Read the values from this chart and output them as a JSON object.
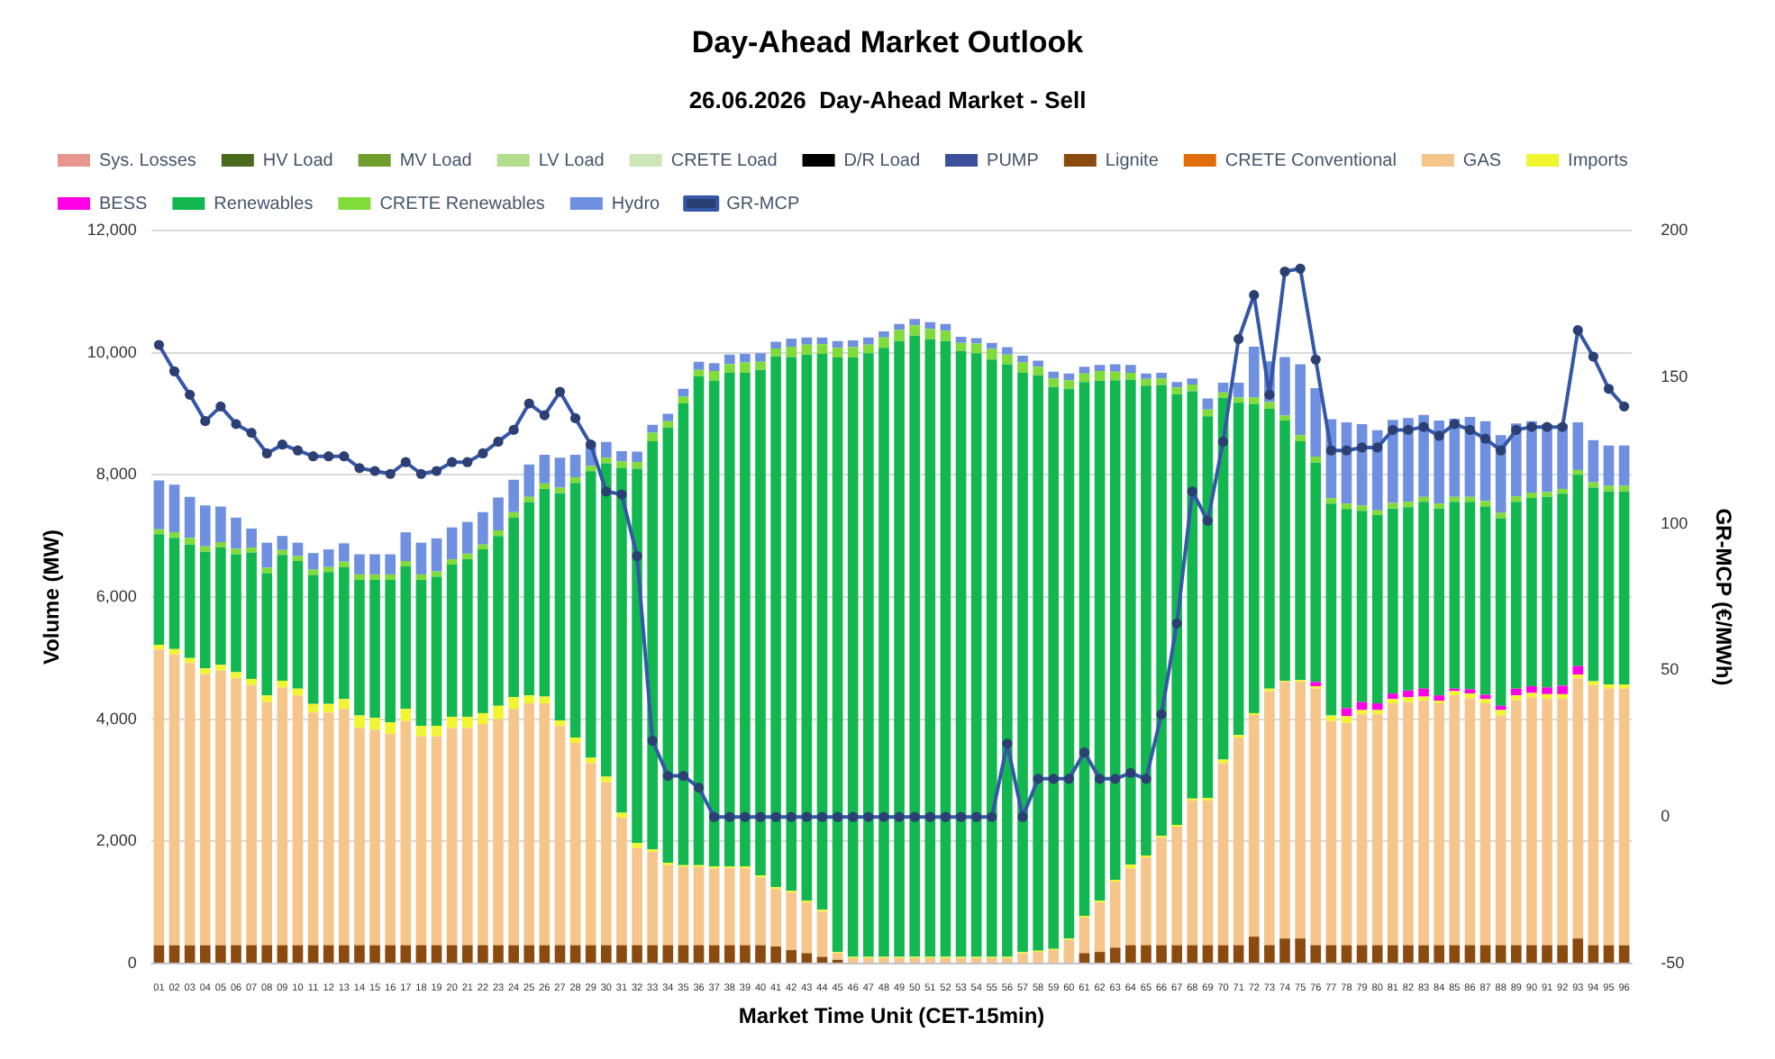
{
  "chart_data": {
    "type": "bar",
    "title": "Day-Ahead Market Outlook",
    "subtitle": "26.06.2026  Day-Ahead Market - Sell",
    "xlabel": "Market Time Unit (CET-15min)",
    "ylabel": "Volume (MW)",
    "y2label": "GR-MCP (€/MWh)",
    "categories": [
      "01",
      "02",
      "03",
      "04",
      "05",
      "06",
      "07",
      "08",
      "09",
      "10",
      "11",
      "12",
      "13",
      "14",
      "15",
      "16",
      "17",
      "18",
      "19",
      "20",
      "21",
      "22",
      "23",
      "24",
      "25",
      "26",
      "27",
      "28",
      "29",
      "30",
      "31",
      "32",
      "33",
      "34",
      "35",
      "36",
      "37",
      "38",
      "39",
      "40",
      "41",
      "42",
      "43",
      "44",
      "45",
      "46",
      "47",
      "48",
      "49",
      "50",
      "51",
      "52",
      "53",
      "54",
      "55",
      "56",
      "57",
      "58",
      "59",
      "60",
      "61",
      "62",
      "63",
      "64",
      "65",
      "66",
      "67",
      "68",
      "69",
      "70",
      "71",
      "72",
      "73",
      "74",
      "75",
      "76",
      "77",
      "78",
      "79",
      "80",
      "81",
      "82",
      "83",
      "84",
      "85",
      "86",
      "87",
      "88",
      "89",
      "90",
      "91",
      "92",
      "93",
      "94",
      "95",
      "96"
    ],
    "stacked": true,
    "ylim": [
      0,
      12000
    ],
    "yticks": [
      {
        "value": 0,
        "label": "0"
      },
      {
        "value": 2000,
        "label": "2,000"
      },
      {
        "value": 4000,
        "label": "4,000"
      },
      {
        "value": 6000,
        "label": "6,000"
      },
      {
        "value": 8000,
        "label": "8,000"
      },
      {
        "value": 10000,
        "label": "10,000"
      },
      {
        "value": 12000,
        "label": "12,000"
      }
    ],
    "y2lim": [
      -50,
      200
    ],
    "y2ticks": [
      -50,
      0,
      50,
      100,
      150,
      200
    ],
    "grid": "y",
    "legend": "top",
    "marker": "circle",
    "line_style": "solid",
    "series": [
      {
        "name": "Sys. Losses",
        "color": "#e6968c",
        "values": [
          0,
          0,
          0,
          0,
          0,
          0,
          0,
          0,
          0,
          0,
          0,
          0,
          0,
          0,
          0,
          0,
          0,
          0,
          0,
          0,
          0,
          0,
          0,
          0,
          0,
          0,
          0,
          0,
          0,
          0,
          0,
          0,
          0,
          0,
          0,
          0,
          0,
          0,
          0,
          0,
          0,
          0,
          0,
          0,
          0,
          0,
          0,
          0,
          0,
          0,
          0,
          0,
          0,
          0,
          0,
          0,
          0,
          0,
          0,
          0,
          0,
          0,
          0,
          0,
          0,
          0,
          0,
          0,
          0,
          0,
          0,
          0,
          0,
          0,
          0,
          0,
          0,
          0,
          0,
          0,
          0,
          0,
          0,
          0,
          0,
          0,
          0,
          0,
          0,
          0,
          0,
          0,
          0,
          0,
          0,
          0
        ]
      },
      {
        "name": "HV Load",
        "color": "#4a6b1e",
        "values": [
          0,
          0,
          0,
          0,
          0,
          0,
          0,
          0,
          0,
          0,
          0,
          0,
          0,
          0,
          0,
          0,
          0,
          0,
          0,
          0,
          0,
          0,
          0,
          0,
          0,
          0,
          0,
          0,
          0,
          0,
          0,
          0,
          0,
          0,
          0,
          0,
          0,
          0,
          0,
          0,
          0,
          0,
          0,
          0,
          0,
          0,
          0,
          0,
          0,
          0,
          0,
          0,
          0,
          0,
          0,
          0,
          0,
          0,
          0,
          0,
          0,
          0,
          0,
          0,
          0,
          0,
          0,
          0,
          0,
          0,
          0,
          0,
          0,
          0,
          0,
          0,
          0,
          0,
          0,
          0,
          0,
          0,
          0,
          0,
          0,
          0,
          0,
          0,
          0,
          0,
          0,
          0,
          0,
          0,
          0,
          0
        ]
      },
      {
        "name": "MV Load",
        "color": "#6f9e2a",
        "values": [
          0,
          0,
          0,
          0,
          0,
          0,
          0,
          0,
          0,
          0,
          0,
          0,
          0,
          0,
          0,
          0,
          0,
          0,
          0,
          0,
          0,
          0,
          0,
          0,
          0,
          0,
          0,
          0,
          0,
          0,
          0,
          0,
          0,
          0,
          0,
          0,
          0,
          0,
          0,
          0,
          0,
          0,
          0,
          0,
          0,
          0,
          0,
          0,
          0,
          0,
          0,
          0,
          0,
          0,
          0,
          0,
          0,
          0,
          0,
          0,
          0,
          0,
          0,
          0,
          0,
          0,
          0,
          0,
          0,
          0,
          0,
          0,
          0,
          0,
          0,
          0,
          0,
          0,
          0,
          0,
          0,
          0,
          0,
          0,
          0,
          0,
          0,
          0,
          0,
          0,
          0,
          0,
          0,
          0,
          0,
          0
        ]
      },
      {
        "name": "LV Load",
        "color": "#b3dc8c",
        "values": [
          0,
          0,
          0,
          0,
          0,
          0,
          0,
          0,
          0,
          0,
          0,
          0,
          0,
          0,
          0,
          0,
          0,
          0,
          0,
          0,
          0,
          0,
          0,
          0,
          0,
          0,
          0,
          0,
          0,
          0,
          0,
          0,
          0,
          0,
          0,
          0,
          0,
          0,
          0,
          0,
          0,
          0,
          0,
          0,
          0,
          0,
          0,
          0,
          0,
          0,
          0,
          0,
          0,
          0,
          0,
          0,
          0,
          0,
          0,
          0,
          0,
          0,
          0,
          0,
          0,
          0,
          0,
          0,
          0,
          0,
          0,
          0,
          0,
          0,
          0,
          0,
          0,
          0,
          0,
          0,
          0,
          0,
          0,
          0,
          0,
          0,
          0,
          0,
          0,
          0,
          0,
          0,
          0,
          0,
          0,
          0
        ]
      },
      {
        "name": "CRETE Load",
        "color": "#cde6b8",
        "values": [
          0,
          0,
          0,
          0,
          0,
          0,
          0,
          0,
          0,
          0,
          0,
          0,
          0,
          0,
          0,
          0,
          0,
          0,
          0,
          0,
          0,
          0,
          0,
          0,
          0,
          0,
          0,
          0,
          0,
          0,
          0,
          0,
          0,
          0,
          0,
          0,
          0,
          0,
          0,
          0,
          0,
          0,
          0,
          0,
          0,
          0,
          0,
          0,
          0,
          0,
          0,
          0,
          0,
          0,
          0,
          0,
          0,
          0,
          0,
          0,
          0,
          0,
          0,
          0,
          0,
          0,
          0,
          0,
          0,
          0,
          0,
          0,
          0,
          0,
          0,
          0,
          0,
          0,
          0,
          0,
          0,
          0,
          0,
          0,
          0,
          0,
          0,
          0,
          0,
          0,
          0,
          0,
          0,
          0,
          0,
          0
        ]
      },
      {
        "name": "D/R Load",
        "color": "#000000",
        "values": [
          0,
          0,
          0,
          0,
          0,
          0,
          0,
          0,
          0,
          0,
          0,
          0,
          0,
          0,
          0,
          0,
          0,
          0,
          0,
          0,
          0,
          0,
          0,
          0,
          0,
          0,
          0,
          0,
          0,
          0,
          0,
          0,
          0,
          0,
          0,
          0,
          0,
          0,
          0,
          0,
          0,
          0,
          0,
          0,
          0,
          0,
          0,
          0,
          0,
          0,
          0,
          0,
          0,
          0,
          0,
          0,
          0,
          0,
          0,
          0,
          0,
          0,
          0,
          0,
          0,
          0,
          0,
          0,
          0,
          0,
          0,
          0,
          0,
          0,
          0,
          0,
          0,
          0,
          0,
          0,
          0,
          0,
          0,
          0,
          0,
          0,
          0,
          0,
          0,
          0,
          0,
          0,
          0,
          0,
          0,
          0
        ]
      },
      {
        "name": "PUMP",
        "color": "#3c4f9a",
        "values": [
          0,
          0,
          0,
          0,
          0,
          0,
          0,
          0,
          0,
          0,
          0,
          0,
          0,
          0,
          0,
          0,
          0,
          0,
          0,
          0,
          0,
          0,
          0,
          0,
          0,
          0,
          0,
          0,
          0,
          0,
          0,
          0,
          0,
          0,
          0,
          0,
          0,
          0,
          0,
          0,
          0,
          0,
          0,
          0,
          0,
          0,
          0,
          0,
          0,
          0,
          0,
          0,
          0,
          0,
          0,
          0,
          0,
          0,
          0,
          0,
          0,
          0,
          0,
          0,
          0,
          0,
          0,
          0,
          0,
          0,
          0,
          0,
          0,
          0,
          0,
          0,
          0,
          0,
          0,
          0,
          0,
          0,
          0,
          0,
          0,
          0,
          0,
          0,
          0,
          0,
          0,
          0,
          0,
          0,
          0,
          0
        ]
      },
      {
        "name": "Lignite",
        "color": "#8b4a0e",
        "values": [
          300,
          300,
          300,
          300,
          300,
          300,
          300,
          300,
          300,
          300,
          300,
          300,
          300,
          300,
          300,
          300,
          300,
          300,
          300,
          300,
          300,
          300,
          300,
          300,
          300,
          300,
          300,
          300,
          300,
          300,
          300,
          300,
          300,
          300,
          300,
          300,
          300,
          300,
          300,
          300,
          280,
          220,
          170,
          110,
          60,
          null,
          0,
          0,
          0,
          0,
          0,
          0,
          0,
          0,
          0,
          0,
          0,
          0,
          0,
          0,
          170,
          190,
          260,
          300,
          300,
          300,
          300,
          300,
          300,
          300,
          300,
          440,
          300,
          410,
          410,
          300,
          300,
          300,
          300,
          300,
          300,
          300,
          300,
          300,
          300,
          300,
          300,
          300,
          300,
          300,
          300,
          300,
          410,
          300,
          300,
          300
        ]
      },
      {
        "name": "CRETE Conventional",
        "color": "#e36c0a",
        "values": [
          0,
          0,
          0,
          0,
          0,
          0,
          0,
          0,
          0,
          0,
          0,
          0,
          0,
          0,
          0,
          0,
          0,
          0,
          0,
          0,
          0,
          0,
          0,
          0,
          0,
          0,
          0,
          0,
          0,
          0,
          0,
          0,
          0,
          0,
          0,
          0,
          0,
          0,
          0,
          0,
          0,
          0,
          0,
          0,
          0,
          0,
          0,
          0,
          0,
          0,
          0,
          0,
          0,
          0,
          0,
          0,
          0,
          0,
          0,
          0,
          0,
          0,
          0,
          0,
          0,
          0,
          0,
          0,
          0,
          0,
          0,
          0,
          0,
          0,
          0,
          0,
          0,
          0,
          0,
          0,
          0,
          0,
          0,
          0,
          0,
          0,
          0,
          0,
          0,
          0,
          0,
          0,
          0,
          0,
          0,
          0
        ]
      },
      {
        "name": "GAS",
        "color": "#f5c58a",
        "values": [
          4840,
          4760,
          4620,
          4440,
          4500,
          4370,
          4260,
          3980,
          4220,
          4090,
          3810,
          3810,
          3870,
          3560,
          3530,
          3460,
          3670,
          3420,
          3420,
          3560,
          3560,
          3620,
          3700,
          3870,
          3960,
          3960,
          3590,
          3310,
          2980,
          2670,
          2090,
          1590,
          1530,
          1310,
          1280,
          1280,
          1260,
          1260,
          1260,
          1110,
          940,
          940,
          830,
          740,
          110,
          90,
          90,
          90,
          90,
          90,
          90,
          90,
          90,
          90,
          90,
          90,
          170,
          190,
          220,
          390,
          580,
          810,
          1080,
          1260,
          1440,
          1760,
          1940,
          2370,
          2370,
          2980,
          3400,
          3630,
          4160,
          4200,
          4200,
          4200,
          3670,
          3640,
          3780,
          3780,
          3960,
          3980,
          4000,
          3960,
          4090,
          4040,
          3960,
          3760,
          4010,
          4060,
          4030,
          4030,
          4260,
          4260,
          4200,
          4200
        ]
      },
      {
        "name": "Imports",
        "color": "#f0f530",
        "values": [
          80,
          90,
          80,
          90,
          90,
          100,
          100,
          110,
          110,
          110,
          140,
          140,
          160,
          200,
          190,
          190,
          200,
          170,
          170,
          180,
          180,
          180,
          220,
          190,
          130,
          110,
          90,
          90,
          90,
          90,
          80,
          80,
          40,
          40,
          30,
          30,
          30,
          30,
          30,
          30,
          30,
          30,
          30,
          30,
          20,
          20,
          20,
          20,
          20,
          20,
          20,
          20,
          20,
          20,
          20,
          20,
          20,
          20,
          20,
          20,
          30,
          30,
          30,
          60,
          30,
          30,
          30,
          30,
          40,
          60,
          40,
          30,
          40,
          20,
          30,
          40,
          90,
          110,
          70,
          70,
          70,
          80,
          70,
          40,
          70,
          80,
          70,
          90,
          80,
          70,
          80,
          80,
          60,
          60,
          70,
          70
        ]
      },
      {
        "name": "BESS",
        "color": "#ff00e6",
        "values": [
          0,
          0,
          0,
          0,
          0,
          0,
          0,
          0,
          0,
          0,
          0,
          0,
          0,
          0,
          0,
          0,
          0,
          0,
          0,
          0,
          0,
          0,
          0,
          0,
          0,
          0,
          0,
          0,
          0,
          0,
          0,
          0,
          0,
          0,
          0,
          0,
          0,
          0,
          0,
          0,
          0,
          0,
          0,
          0,
          0,
          0,
          0,
          0,
          0,
          0,
          0,
          0,
          0,
          0,
          0,
          0,
          0,
          0,
          0,
          0,
          0,
          0,
          0,
          0,
          0,
          0,
          0,
          0,
          0,
          0,
          0,
          0,
          0,
          0,
          0,
          70,
          0,
          130,
          130,
          110,
          90,
          110,
          130,
          90,
          40,
          70,
          70,
          70,
          110,
          110,
          110,
          140,
          140,
          0,
          0,
          0
        ]
      },
      {
        "name": "Renewables",
        "color": "#12b84f",
        "values": [
          1810,
          1820,
          1860,
          1910,
          1920,
          1930,
          2070,
          2000,
          2060,
          2090,
          2110,
          2160,
          2160,
          2220,
          2260,
          2330,
          2330,
          2390,
          2440,
          2490,
          2580,
          2680,
          2780,
          2940,
          3160,
          3400,
          3720,
          4170,
          4690,
          5130,
          5640,
          6130,
          6680,
          7120,
          7560,
          8000,
          7950,
          8080,
          8080,
          8280,
          8690,
          8740,
          8940,
          9100,
          9730,
          9810,
          9880,
          9970,
          10080,
          10170,
          10110,
          10080,
          9920,
          9880,
          9780,
          9700,
          9480,
          9420,
          9200,
          9000,
          8740,
          8510,
          8180,
          7940,
          7690,
          7380,
          7050,
          6670,
          6250,
          5920,
          5440,
          5060,
          4580,
          4260,
          3910,
          3590,
          3470,
          3260,
          3130,
          3080,
          3030,
          3000,
          3060,
          3060,
          3060,
          3070,
          3080,
          3070,
          3060,
          3080,
          3120,
          3140,
          3130,
          3170,
          3160,
          3160
        ]
      },
      {
        "name": "CRETE Renewables",
        "color": "#7fdc3a",
        "values": [
          80,
          90,
          110,
          90,
          90,
          90,
          80,
          90,
          80,
          80,
          90,
          80,
          90,
          90,
          90,
          90,
          90,
          90,
          90,
          90,
          90,
          80,
          90,
          90,
          90,
          90,
          90,
          90,
          90,
          90,
          110,
          110,
          140,
          110,
          110,
          110,
          160,
          140,
          170,
          130,
          130,
          170,
          160,
          160,
          160,
          170,
          140,
          170,
          180,
          170,
          170,
          170,
          130,
          160,
          170,
          160,
          170,
          140,
          140,
          140,
          140,
          160,
          140,
          110,
          110,
          110,
          110,
          110,
          110,
          90,
          90,
          110,
          110,
          80,
          100,
          100,
          90,
          90,
          90,
          80,
          90,
          90,
          80,
          80,
          80,
          80,
          90,
          90,
          90,
          90,
          80,
          80,
          80,
          90,
          90,
          90
        ]
      },
      {
        "name": "Hydro",
        "color": "#6f8fe0",
        "values": [
          800,
          780,
          670,
          670,
          580,
          510,
          310,
          410,
          230,
          220,
          270,
          290,
          300,
          330,
          330,
          330,
          470,
          520,
          540,
          520,
          520,
          530,
          540,
          530,
          530,
          470,
          490,
          370,
          390,
          260,
          170,
          170,
          130,
          120,
          130,
          130,
          130,
          160,
          140,
          140,
          110,
          130,
          120,
          110,
          110,
          110,
          120,
          100,
          100,
          100,
          110,
          110,
          100,
          90,
          100,
          120,
          110,
          100,
          110,
          110,
          110,
          100,
          120,
          130,
          90,
          90,
          90,
          100,
          180,
          160,
          240,
          830,
          670,
          960,
          1160,
          1120,
          1290,
          1330,
          1330,
          1310,
          1360,
          1370,
          1340,
          1360,
          1280,
          1310,
          1310,
          1270,
          1190,
          1170,
          1110,
          1060,
          780,
          690,
          660,
          660
        ]
      },
      {
        "name": "GR-MCP",
        "type": "line",
        "axis": "y2",
        "color": "#3557a8",
        "values": [
          161,
          152,
          144,
          135,
          140,
          134,
          131,
          124,
          127,
          125,
          123,
          123,
          123,
          119,
          118,
          117,
          121,
          117,
          118,
          121,
          121,
          124,
          128,
          132,
          141,
          137,
          145,
          136,
          127,
          111,
          110,
          89,
          26,
          14,
          14,
          10,
          0,
          0,
          0,
          0,
          0,
          0,
          0,
          0,
          0,
          0,
          0,
          0,
          0,
          0,
          0,
          0,
          0,
          0,
          0,
          25,
          0,
          13,
          13,
          13,
          22,
          13,
          13,
          15,
          13,
          35,
          66,
          111,
          101,
          128,
          163,
          178,
          144,
          186,
          187,
          156,
          125,
          125,
          126,
          126,
          132,
          132,
          133,
          130,
          134,
          132,
          129,
          125,
          132,
          133,
          133,
          133,
          166,
          157,
          146,
          140
        ]
      }
    ]
  }
}
